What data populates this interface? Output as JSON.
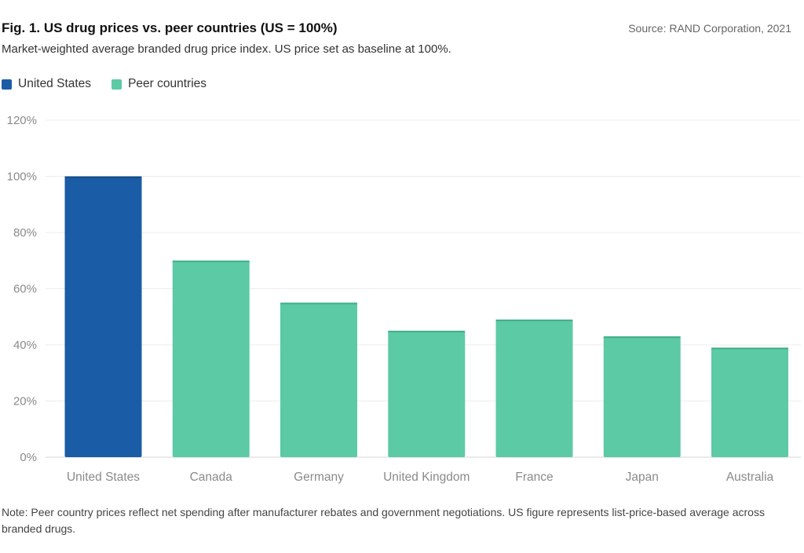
{
  "header": {
    "title": "Fig. 1. US drug prices vs. peer countries (US = 100%)",
    "subtitle": "Market-weighted average branded drug price index. US price set as baseline at 100%.",
    "source": "Source: RAND Corporation, 2021"
  },
  "legend": {
    "items": [
      {
        "label": "United States",
        "color": "#1a5ca5"
      },
      {
        "label": "Peer countries",
        "color": "#5ccaa5"
      }
    ]
  },
  "chart_data": {
    "type": "bar",
    "categories": [
      "United States",
      "Canada",
      "Germany",
      "United Kingdom",
      "France",
      "Japan",
      "Australia"
    ],
    "values": [
      100,
      70,
      55,
      45,
      49,
      43,
      39
    ],
    "colors": [
      "#1a5ca5",
      "#5ccaa5",
      "#5ccaa5",
      "#5ccaa5",
      "#5ccaa5",
      "#5ccaa5",
      "#5ccaa5"
    ],
    "ylim": [
      0,
      120
    ],
    "yticks": [
      0,
      20,
      40,
      60,
      80,
      100,
      120
    ],
    "ytick_labels": [
      "0%",
      "20%",
      "40%",
      "60%",
      "80%",
      "100%",
      "120%"
    ],
    "grid": true,
    "legend_position": "top-left"
  },
  "footer": {
    "note": "Note: Peer country prices reflect net spending after manufacturer rebates and government negotiations. US figure represents list-price-based average across branded drugs."
  }
}
